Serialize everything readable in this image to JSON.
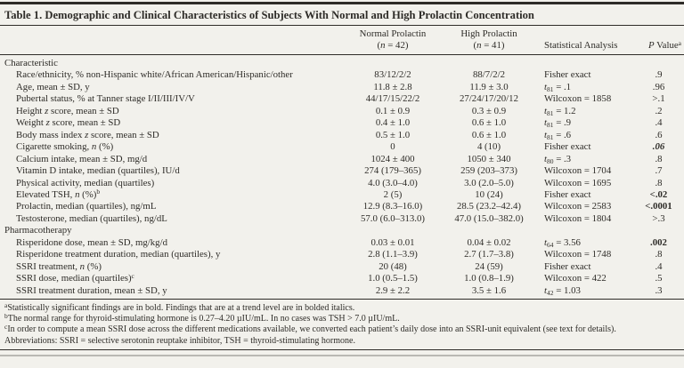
{
  "page": {
    "background_color": "#f2f1ec",
    "text_color": "#2e2c28"
  },
  "table": {
    "title": "Table 1. Demographic and Clinical Characteristics of Subjects With Normal and High Prolactin Concentration",
    "columns": {
      "normal_line1": "Normal Prolactin",
      "normal_line2": "(_n_ = 42)",
      "high_line1": "High Prolactin",
      "high_line2": "(_n_ = 41)",
      "stat": "Statistical Analysis",
      "pvalue": "_P_ Value^a^"
    },
    "rows": [
      {
        "type": "section",
        "label": "Characteristic",
        "normal": "",
        "high": "",
        "stat": "",
        "p": "",
        "p_style": ""
      },
      {
        "type": "item",
        "label": "Race/ethnicity, % non-Hispanic white/African American/Hispanic/other",
        "normal": "83/12/2/2",
        "high": "88/7/2/2",
        "stat": "Fisher exact",
        "p": ".9",
        "p_style": ""
      },
      {
        "type": "item",
        "label": "Age, mean ± SD, y",
        "normal": "11.8 ± 2.8",
        "high": "11.9 ± 3.0",
        "stat": "_t_~81~ = .1",
        "p": ".96",
        "p_style": ""
      },
      {
        "type": "item",
        "label": "Pubertal status, % at Tanner stage I/II/III/IV/V",
        "normal": "44/17/15/22/2",
        "high": "27/24/17/20/12",
        "stat": "Wilcoxon = 1858",
        "p": ">.1",
        "p_style": ""
      },
      {
        "type": "item",
        "label": "Height _z_ score, mean ± SD",
        "normal": "0.1 ± 0.9",
        "high": "0.3 ± 0.9",
        "stat": "_t_~81~ = 1.2",
        "p": ".2",
        "p_style": ""
      },
      {
        "type": "item",
        "label": "Weight _z_ score, mean ± SD",
        "normal": "0.4 ± 1.0",
        "high": "0.6 ± 1.0",
        "stat": "_t_~81~ = .9",
        "p": ".4",
        "p_style": ""
      },
      {
        "type": "item",
        "label": "Body mass index _z_ score, mean ± SD",
        "normal": "0.5 ± 1.0",
        "high": "0.6 ± 1.0",
        "stat": "_t_~81~ = .6",
        "p": ".6",
        "p_style": ""
      },
      {
        "type": "item",
        "label": "Cigarette smoking, _n_ (%)",
        "normal": "0",
        "high": "4 (10)",
        "stat": "Fisher exact",
        "p": ".06",
        "p_style": "bold-italic"
      },
      {
        "type": "item",
        "label": "Calcium intake, mean ± SD, mg/d",
        "normal": "1024 ± 400",
        "high": "1050 ± 340",
        "stat": "_t_~80~ = .3",
        "p": ".8",
        "p_style": ""
      },
      {
        "type": "item",
        "label": "Vitamin D intake, median (quartiles), IU/d",
        "normal": "274 (179–365)",
        "high": "259 (203–373)",
        "stat": "Wilcoxon = 1704",
        "p": ".7",
        "p_style": ""
      },
      {
        "type": "item",
        "label": "Physical activity, median (quartiles)",
        "normal": "4.0 (3.0–4.0)",
        "high": "3.0 (2.0–5.0)",
        "stat": "Wilcoxon = 1695",
        "p": ".8",
        "p_style": ""
      },
      {
        "type": "item",
        "label": "Elevated TSH, _n_ (%)^b^",
        "normal": "2 (5)",
        "high": "10 (24)",
        "stat": "Fisher exact",
        "p": "<.02",
        "p_style": "bold"
      },
      {
        "type": "item",
        "label": "Prolactin, median (quartiles), ng/mL",
        "normal": "12.9 (8.3–16.0)",
        "high": "28.5 (23.2–42.4)",
        "stat": "Wilcoxon = 2583",
        "p": "<.0001",
        "p_style": "bold"
      },
      {
        "type": "item",
        "label": "Testosterone, median (quartiles), ng/dL",
        "normal": "57.0 (6.0–313.0)",
        "high": "47.0 (15.0–382.0)",
        "stat": "Wilcoxon = 1804",
        "p": ">.3",
        "p_style": ""
      },
      {
        "type": "section",
        "label": "Pharmacotherapy",
        "normal": "",
        "high": "",
        "stat": "",
        "p": "",
        "p_style": ""
      },
      {
        "type": "item",
        "label": "Risperidone dose, mean ± SD, mg/kg/d",
        "normal": "0.03 ± 0.01",
        "high": "0.04 ± 0.02",
        "stat": "_t_~64~ = 3.56",
        "p": ".002",
        "p_style": "bold"
      },
      {
        "type": "item",
        "label": "Risperidone treatment duration, median (quartiles), y",
        "normal": "2.8 (1.1–3.9)",
        "high": "2.7 (1.7–3.8)",
        "stat": "Wilcoxon = 1748",
        "p": ".8",
        "p_style": ""
      },
      {
        "type": "item",
        "label": "SSRI treatment, _n_ (%)",
        "normal": "20 (48)",
        "high": "24 (59)",
        "stat": "Fisher exact",
        "p": ".4",
        "p_style": ""
      },
      {
        "type": "item",
        "label": "SSRI dose, median (quartiles)^c^",
        "normal": "1.0 (0.5–1.5)",
        "high": "1.0 (0.8–1.9)",
        "stat": "Wilcoxon = 422",
        "p": ".5",
        "p_style": ""
      },
      {
        "type": "item",
        "label": "SSRI treatment duration, mean ± SD, y",
        "normal": "2.9 ± 2.2",
        "high": "3.5 ± 1.6",
        "stat": "_t_~42~ = 1.03",
        "p": ".3",
        "p_style": ""
      }
    ],
    "footnotes": [
      "^a^Statistically significant findings are in bold. Findings that are at a trend level are in bolded italics.",
      "^b^The normal range for thyroid-stimulating hormone is 0.27–4.20 µIU/mL. In no cases was TSH > 7.0 µIU/mL.",
      "^c^In order to compute a mean SSRI dose across the different medications available, we converted each patient’s daily dose into an SSRI-unit equivalent (see text for details).",
      "Abbreviations: SSRI = selective serotonin reuptake inhibitor, TSH = thyroid-stimulating hormone."
    ]
  }
}
